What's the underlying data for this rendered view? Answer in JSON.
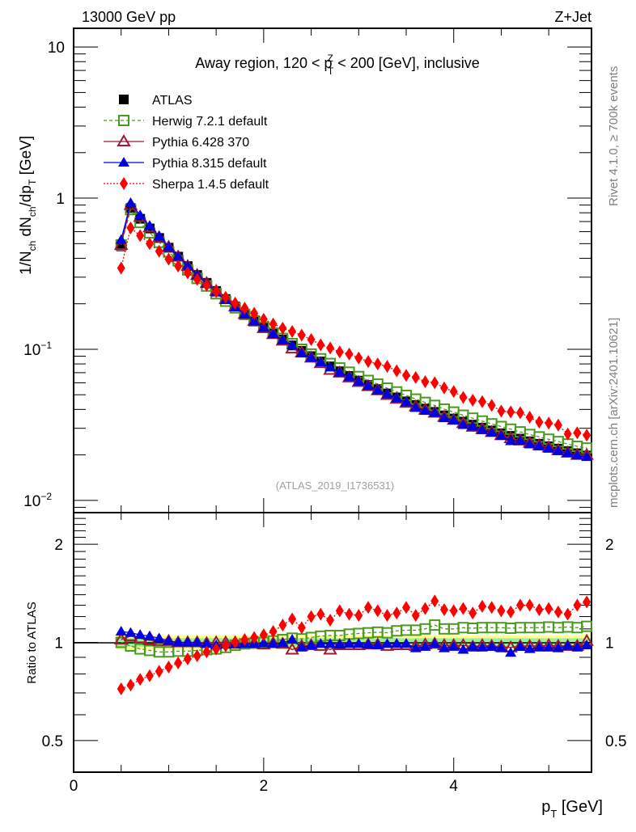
{
  "header": {
    "left": "13000 GeV pp",
    "right": "Z+Jet"
  },
  "side_labels": {
    "rivet": "Rivet 4.1.0, ≥ 700k events",
    "mcplots": "mcplots.cern.ch [arXiv:2401.10621]"
  },
  "chart_data": [
    {
      "type": "line",
      "panel": "main",
      "title_parts": {
        "pre": "Away region, 120 < p",
        "sup": "Z",
        "sub": "T",
        "post": " < 200 [GeV], inclusive"
      },
      "ylabel": "1/N_ch dN_ch/dp_T [GeV]",
      "ylabel_parts": {
        "a": "1/N",
        "a_sub": "ch",
        "b": " dN",
        "b_sub": "ch",
        "c": "/dp",
        "c_sub": "T",
        "d": " [GeV]"
      },
      "xlabel": "p_T [GeV]",
      "yscale": "log",
      "ylim": [
        0.0083,
        13.3
      ],
      "xlim": [
        0,
        5.45
      ],
      "yticks": [
        {
          "v": 10,
          "label": "10"
        },
        {
          "v": 1,
          "label": "1"
        },
        {
          "v": 0.1,
          "label": "10",
          "exp": "−1"
        },
        {
          "v": 0.01,
          "label": "10",
          "exp": "−2"
        }
      ],
      "watermark": "(ATLAS_2019_I1736531)",
      "x": [
        0.5,
        0.6,
        0.7,
        0.8,
        0.9,
        1.0,
        1.1,
        1.2,
        1.3,
        1.4,
        1.5,
        1.6,
        1.7,
        1.8,
        1.9,
        2.0,
        2.1,
        2.2,
        2.3,
        2.4,
        2.5,
        2.6,
        2.7,
        2.8,
        2.9,
        3.0,
        3.1,
        3.2,
        3.3,
        3.4,
        3.5,
        3.6,
        3.7,
        3.8,
        3.9,
        4.0,
        4.1,
        4.2,
        4.3,
        4.4,
        4.5,
        4.6,
        4.7,
        4.8,
        4.9,
        5.0,
        5.1,
        5.2,
        5.3,
        5.4
      ],
      "series": [
        {
          "name": "ATLAS",
          "color": "#000000",
          "marker": "square-filled",
          "line": "none",
          "values": [
            0.48,
            0.86,
            0.73,
            0.63,
            0.545,
            0.47,
            0.41,
            0.355,
            0.31,
            0.275,
            0.243,
            0.215,
            0.192,
            0.172,
            0.155,
            0.14,
            0.127,
            0.116,
            0.106,
            0.0975,
            0.09,
            0.083,
            0.077,
            0.0715,
            0.0665,
            0.062,
            0.058,
            0.0545,
            0.051,
            0.048,
            0.0452,
            0.0428,
            0.0405,
            0.0385,
            0.0365,
            0.0348,
            0.0332,
            0.0317,
            0.0303,
            0.029,
            0.0278,
            0.0267,
            0.0256,
            0.0246,
            0.0237,
            0.0228,
            0.022,
            0.0212,
            0.0205,
            0.0198
          ]
        },
        {
          "name": "Herwig 7.2.1 default",
          "color": "#4a9a1f",
          "marker": "square-open",
          "line": "dashed",
          "values": [
            0.49,
            0.84,
            0.69,
            0.59,
            0.51,
            0.44,
            0.385,
            0.335,
            0.294,
            0.262,
            0.233,
            0.208,
            0.188,
            0.17,
            0.154,
            0.14,
            0.128,
            0.118,
            0.109,
            0.1,
            0.093,
            0.0865,
            0.0805,
            0.0752,
            0.0705,
            0.066,
            0.0622,
            0.0588,
            0.0553,
            0.0522,
            0.0495,
            0.0468,
            0.0445,
            0.0425,
            0.0402,
            0.0384,
            0.0366,
            0.035,
            0.0335,
            0.0321,
            0.0308,
            0.0296,
            0.0284,
            0.0273,
            0.0263,
            0.0254,
            0.0245,
            0.0236,
            0.0228,
            0.0222
          ]
        },
        {
          "name": "Pythia 6.428 370",
          "color": "#9b1b30",
          "marker": "triangle-open",
          "line": "solid",
          "values": [
            0.49,
            0.9,
            0.75,
            0.64,
            0.55,
            0.475,
            0.41,
            0.355,
            0.31,
            0.274,
            0.243,
            0.215,
            0.192,
            0.171,
            0.154,
            0.138,
            0.126,
            0.114,
            0.101,
            0.095,
            0.088,
            0.081,
            0.073,
            0.07,
            0.065,
            0.0607,
            0.057,
            0.0535,
            0.0498,
            0.047,
            0.0442,
            0.0418,
            0.0398,
            0.038,
            0.0357,
            0.0341,
            0.0325,
            0.0307,
            0.0296,
            0.0283,
            0.027,
            0.0258,
            0.0249,
            0.024,
            0.0231,
            0.0224,
            0.0215,
            0.0207,
            0.02,
            0.02
          ]
        },
        {
          "name": "Pythia 8.315 default",
          "color": "#0000e0",
          "marker": "triangle-filled",
          "line": "solid",
          "values": [
            0.53,
            0.93,
            0.77,
            0.655,
            0.56,
            0.475,
            0.41,
            0.355,
            0.31,
            0.272,
            0.238,
            0.212,
            0.189,
            0.17,
            0.153,
            0.139,
            0.126,
            0.115,
            0.106,
            0.094,
            0.088,
            0.082,
            0.076,
            0.0702,
            0.0657,
            0.0612,
            0.0572,
            0.0535,
            0.0505,
            0.0475,
            0.0447,
            0.041,
            0.0392,
            0.038,
            0.035,
            0.0338,
            0.0316,
            0.0308,
            0.0292,
            0.0281,
            0.0267,
            0.0247,
            0.0248,
            0.0235,
            0.0228,
            0.022,
            0.0212,
            0.0206,
            0.0198,
            0.0194
          ]
        },
        {
          "name": "Sherpa 1.4.5 default",
          "color": "#ff0000",
          "marker": "diamond-filled",
          "line": "dotted",
          "values": [
            0.345,
            0.635,
            0.565,
            0.5,
            0.445,
            0.395,
            0.355,
            0.32,
            0.29,
            0.265,
            0.24,
            0.221,
            0.202,
            0.187,
            0.173,
            0.158,
            0.147,
            0.138,
            0.131,
            0.124,
            0.116,
            0.107,
            0.102,
            0.096,
            0.093,
            0.0875,
            0.083,
            0.08,
            0.077,
            0.072,
            0.0672,
            0.065,
            0.061,
            0.06,
            0.0555,
            0.0525,
            0.048,
            0.046,
            0.045,
            0.0425,
            0.039,
            0.0385,
            0.038,
            0.0355,
            0.033,
            0.0325,
            0.0315,
            0.0275,
            0.028,
            0.027
          ]
        }
      ],
      "band_colors": {
        "inner": "#99ee99",
        "outer": "#ffff99"
      }
    },
    {
      "type": "line",
      "panel": "ratio",
      "ylabel": "Ratio to ATLAS",
      "yscale": "log",
      "ylim": [
        0.4,
        2.5
      ],
      "xlim": [
        0,
        5.45
      ],
      "yticks": [
        {
          "v": 2,
          "label": "2"
        },
        {
          "v": 1,
          "label": "1"
        },
        {
          "v": 0.5,
          "label": "0.5"
        }
      ],
      "xticks": [
        {
          "v": 0,
          "label": "0"
        },
        {
          "v": 2,
          "label": "2"
        },
        {
          "v": 4,
          "label": "4"
        }
      ],
      "x": [
        0.5,
        0.6,
        0.7,
        0.8,
        0.9,
        1.0,
        1.1,
        1.2,
        1.3,
        1.4,
        1.5,
        1.6,
        1.7,
        1.8,
        1.9,
        2.0,
        2.1,
        2.2,
        2.3,
        2.4,
        2.5,
        2.6,
        2.7,
        2.8,
        2.9,
        3.0,
        3.1,
        3.2,
        3.3,
        3.4,
        3.5,
        3.6,
        3.7,
        3.8,
        3.9,
        4.0,
        4.1,
        4.2,
        4.3,
        4.4,
        4.5,
        4.6,
        4.7,
        4.8,
        4.9,
        5.0,
        5.1,
        5.2,
        5.3,
        5.4
      ],
      "band_inner": [
        0.03,
        0.03,
        0.03,
        0.03,
        0.03,
        0.03,
        0.03,
        0.03,
        0.03,
        0.03,
        0.03,
        0.03,
        0.03,
        0.03,
        0.03,
        0.03,
        0.03,
        0.03,
        0.03,
        0.03,
        0.03,
        0.03,
        0.03,
        0.03,
        0.03,
        0.03,
        0.03,
        0.03,
        0.03,
        0.03,
        0.03,
        0.03,
        0.03,
        0.03,
        0.03,
        0.03,
        0.03,
        0.03,
        0.03,
        0.03,
        0.03,
        0.03,
        0.03,
        0.03,
        0.03,
        0.03,
        0.03,
        0.03,
        0.03,
        0.03
      ],
      "band_outer": [
        0.05,
        0.05,
        0.05,
        0.05,
        0.05,
        0.05,
        0.05,
        0.05,
        0.05,
        0.05,
        0.05,
        0.05,
        0.05,
        0.05,
        0.05,
        0.05,
        0.05,
        0.05,
        0.05,
        0.05,
        0.05,
        0.05,
        0.05,
        0.05,
        0.05,
        0.05,
        0.05,
        0.05,
        0.05,
        0.05,
        0.05,
        0.05,
        0.05,
        0.05,
        0.05,
        0.05,
        0.05,
        0.05,
        0.05,
        0.05,
        0.05,
        0.05,
        0.05,
        0.05,
        0.05,
        0.05,
        0.05,
        0.05,
        0.05,
        0.06
      ],
      "series": [
        {
          "name": "Herwig 7.2.1 default",
          "color": "#4a9a1f",
          "marker": "square-open",
          "line": "dashed",
          "values": [
            1.0,
            0.975,
            0.955,
            0.945,
            0.935,
            0.935,
            0.94,
            0.94,
            0.945,
            0.95,
            0.955,
            0.965,
            0.98,
            0.99,
            0.995,
            1.0,
            1.01,
            1.02,
            1.03,
            1.025,
            1.035,
            1.045,
            1.05,
            1.05,
            1.06,
            1.065,
            1.07,
            1.075,
            1.07,
            1.085,
            1.09,
            1.09,
            1.1,
            1.13,
            1.1,
            1.1,
            1.11,
            1.105,
            1.11,
            1.11,
            1.11,
            1.105,
            1.11,
            1.11,
            1.11,
            1.115,
            1.11,
            1.115,
            1.11,
            1.12
          ]
        },
        {
          "name": "Pythia 6.428 370",
          "color": "#9b1b30",
          "marker": "triangle-open",
          "line": "solid",
          "values": [
            1.02,
            1.045,
            1.03,
            1.015,
            1.01,
            1.01,
            1.0,
            1.0,
            1.0,
            0.995,
            1.0,
            1.0,
            1.0,
            0.995,
            0.995,
            0.985,
            0.995,
            0.99,
            0.95,
            0.975,
            0.98,
            0.975,
            0.95,
            0.98,
            0.98,
            0.98,
            0.985,
            0.985,
            0.975,
            0.98,
            0.98,
            0.975,
            0.985,
            0.99,
            0.98,
            0.98,
            0.98,
            0.97,
            0.98,
            0.975,
            0.97,
            0.965,
            0.975,
            0.975,
            0.975,
            0.98,
            0.975,
            0.975,
            0.975,
            1.01
          ]
        },
        {
          "name": "Pythia 8.315 default",
          "color": "#0000e0",
          "marker": "triangle-filled",
          "line": "solid",
          "values": [
            1.08,
            1.07,
            1.055,
            1.045,
            1.03,
            1.01,
            1.0,
            1.0,
            1.0,
            0.99,
            0.98,
            0.985,
            0.985,
            0.99,
            0.99,
            0.995,
            0.99,
            0.995,
            1.02,
            0.965,
            0.98,
            0.99,
            0.99,
            0.985,
            0.99,
            0.99,
            0.985,
            0.98,
            0.99,
            0.99,
            0.99,
            0.96,
            0.97,
            0.99,
            0.96,
            0.97,
            0.95,
            0.97,
            0.965,
            0.97,
            0.96,
            0.93,
            0.97,
            0.955,
            0.965,
            0.965,
            0.96,
            0.975,
            0.965,
            0.98
          ]
        },
        {
          "name": "Sherpa 1.4.5 default",
          "color": "#ff0000",
          "marker": "diamond-filled",
          "line": "dotted",
          "values": [
            0.72,
            0.74,
            0.77,
            0.79,
            0.815,
            0.84,
            0.865,
            0.89,
            0.91,
            0.935,
            0.955,
            0.975,
            1.0,
            1.02,
            1.035,
            1.055,
            1.08,
            1.13,
            1.18,
            1.11,
            1.2,
            1.22,
            1.17,
            1.25,
            1.22,
            1.21,
            1.28,
            1.25,
            1.21,
            1.23,
            1.28,
            1.21,
            1.27,
            1.34,
            1.26,
            1.25,
            1.27,
            1.23,
            1.29,
            1.28,
            1.25,
            1.24,
            1.3,
            1.3,
            1.26,
            1.27,
            1.24,
            1.22,
            1.3,
            1.33
          ]
        }
      ]
    }
  ]
}
